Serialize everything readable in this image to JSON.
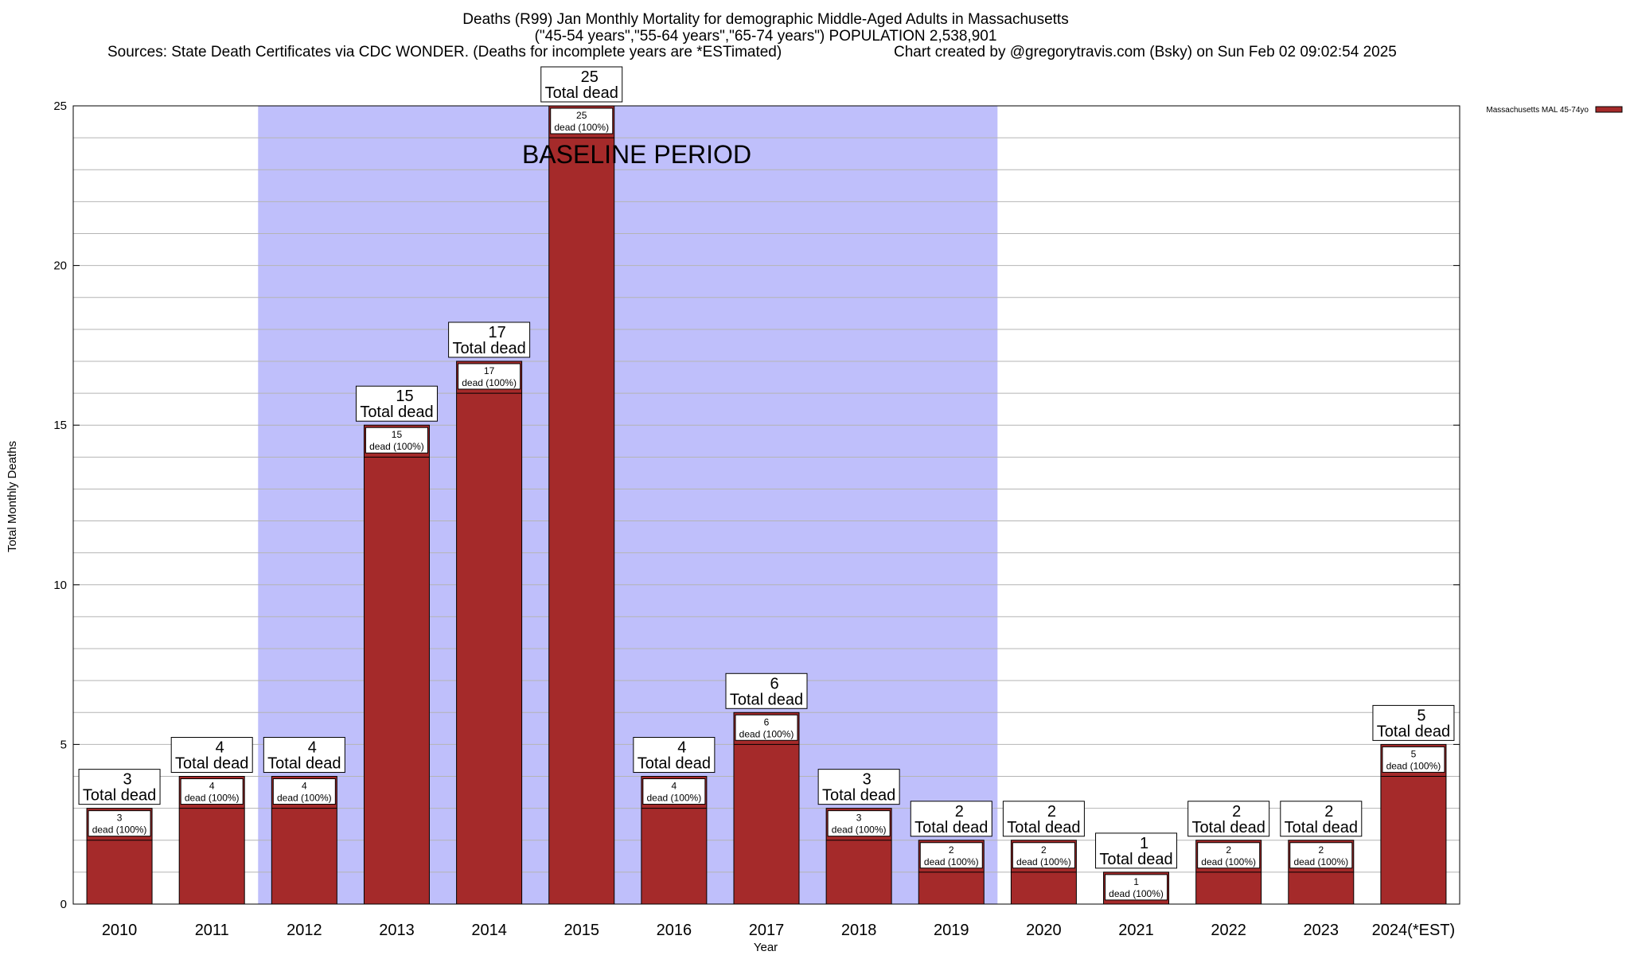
{
  "header": {
    "title_line1": "Deaths (R99) Jan Monthly Mortality for demographic Middle-Aged Adults in Massachusetts",
    "title_line2": "(\"45-54 years\",\"55-64 years\",\"65-74 years\") POPULATION 2,538,901",
    "sources": "Sources: State Death Certificates via CDC WONDER. (Deaths for incomplete years are *ESTimated)",
    "credit": "Chart created by @gregorytravis.com (Bsky) on Sun Feb 02 09:02:54 2025"
  },
  "chart_data": {
    "type": "bar",
    "title": "Deaths (R99) Jan Monthly Mortality for demographic Middle-Aged Adults in Massachusetts",
    "xlabel": "Year",
    "ylabel": "Total Monthly Deaths",
    "ylim": [
      0,
      25
    ],
    "yticks": [
      0,
      5,
      10,
      15,
      20,
      25
    ],
    "grid": true,
    "categories": [
      "2010",
      "2011",
      "2012",
      "2013",
      "2014",
      "2015",
      "2016",
      "2017",
      "2018",
      "2019",
      "2020",
      "2021",
      "2022",
      "2023",
      "2024(*EST)"
    ],
    "series": [
      {
        "name": "Massachusetts MAL 45-74yo",
        "color": "#a52a2a",
        "values": [
          3,
          4,
          4,
          15,
          17,
          25,
          4,
          6,
          3,
          2,
          2,
          1,
          2,
          2,
          5
        ]
      }
    ],
    "total_label": "Total dead",
    "inner_label_suffix": "dead (100%)",
    "baseline": {
      "label": "BASELINE PERIOD",
      "from": "2012",
      "to": "2019",
      "color": "#bfbffb"
    },
    "legend": {
      "position": "top-right",
      "entries": [
        "Massachusetts MAL 45-74yo"
      ]
    }
  }
}
